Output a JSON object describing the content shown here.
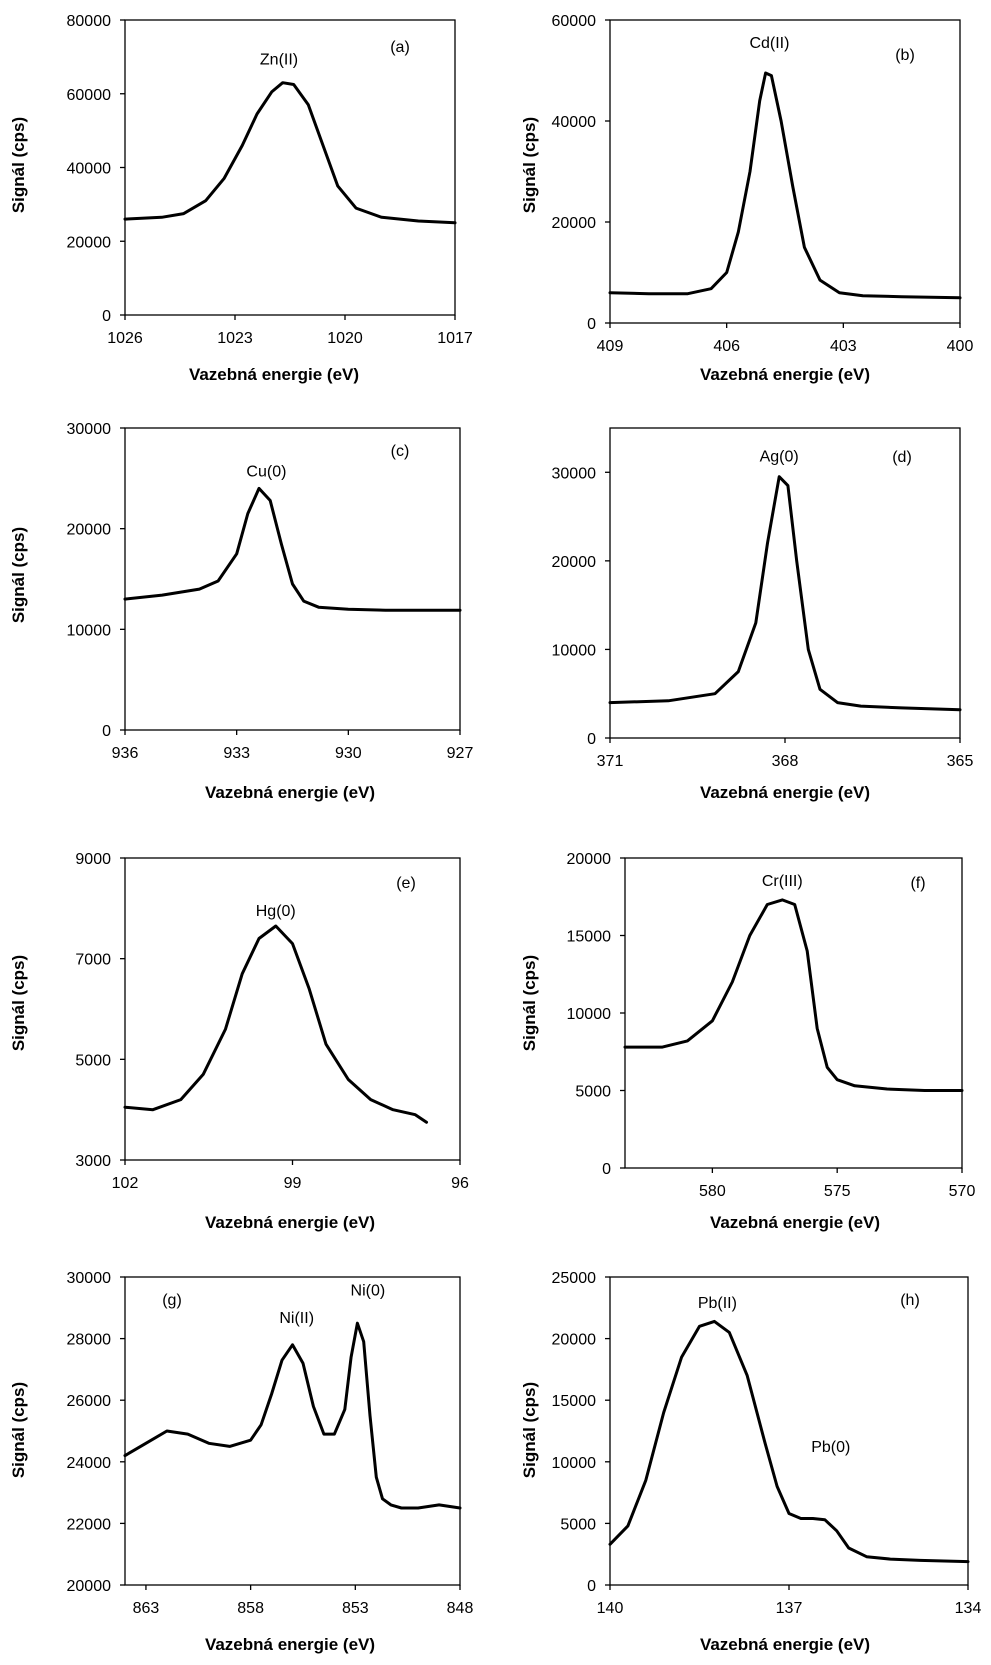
{
  "chart_data": [
    {
      "type": "line",
      "panel_label": "(a)",
      "xlabel": "Vazebná energie (eV)",
      "ylabel": "Signál (cps)",
      "xlim": [
        1026,
        1017
      ],
      "ylim": [
        0,
        80000
      ],
      "xticks": [
        1026,
        1023,
        1020,
        1017
      ],
      "yticks": [
        0,
        20000,
        40000,
        60000,
        80000
      ],
      "annotations": [
        {
          "text": "Zn(II)",
          "x": 1021.8,
          "y": 68000
        }
      ],
      "series": [
        {
          "x": [
            1026,
            1025,
            1024.4,
            1023.8,
            1023.3,
            1022.8,
            1022.4,
            1022.0,
            1021.7,
            1021.4,
            1021.0,
            1020.6,
            1020.2,
            1019.7,
            1019.0,
            1018.0,
            1017
          ],
          "y": [
            26000,
            26500,
            27500,
            31000,
            37000,
            46000,
            54500,
            60500,
            63000,
            62500,
            57000,
            46000,
            35000,
            29000,
            26500,
            25500,
            25000
          ]
        }
      ]
    },
    {
      "type": "line",
      "panel_label": "(b)",
      "xlabel": "Vazebná energie (eV)",
      "ylabel": "Signál (cps)",
      "xlim": [
        409,
        400
      ],
      "ylim": [
        0,
        60000
      ],
      "xticks": [
        409,
        406,
        403,
        400
      ],
      "yticks": [
        0,
        20000,
        40000,
        60000
      ],
      "annotations": [
        {
          "text": "Cd(II)",
          "x": 404.9,
          "y": 54500
        }
      ],
      "series": [
        {
          "x": [
            409,
            408,
            407.0,
            406.4,
            406.0,
            405.7,
            405.4,
            405.15,
            405.0,
            404.85,
            404.6,
            404.3,
            404.0,
            403.6,
            403.1,
            402.5,
            401.5,
            400
          ],
          "y": [
            6000,
            5800,
            5800,
            6800,
            10000,
            18000,
            30000,
            44000,
            49500,
            49000,
            40000,
            27000,
            15000,
            8500,
            6000,
            5400,
            5200,
            5000
          ]
        }
      ]
    },
    {
      "type": "line",
      "panel_label": "(c)",
      "xlabel": "Vazebná energie (eV)",
      "ylabel": "Signál (cps)",
      "xlim": [
        936,
        927
      ],
      "ylim": [
        0,
        30000
      ],
      "xticks": [
        936,
        933,
        930,
        927
      ],
      "yticks": [
        0,
        10000,
        20000,
        30000
      ],
      "annotations": [
        {
          "text": "Cu(0)",
          "x": 932.2,
          "y": 25200
        }
      ],
      "series": [
        {
          "x": [
            936,
            935,
            934,
            933.5,
            933.0,
            932.7,
            932.4,
            932.1,
            931.8,
            931.5,
            931.2,
            930.8,
            930.0,
            929.0,
            928.0,
            927
          ],
          "y": [
            13000,
            13400,
            14000,
            14800,
            17500,
            21500,
            24000,
            22800,
            18500,
            14500,
            12800,
            12200,
            12000,
            11900,
            11900,
            11900
          ]
        }
      ]
    },
    {
      "type": "line",
      "panel_label": "(d)",
      "xlabel": "Vazebná energie (eV)",
      "ylabel": "",
      "xlim": [
        371,
        365
      ],
      "ylim": [
        0,
        35000
      ],
      "xticks": [
        371,
        368,
        365
      ],
      "yticks": [
        0,
        10000,
        20000,
        30000
      ],
      "annotations": [
        {
          "text": "Ag(0)",
          "x": 368.1,
          "y": 31200
        }
      ],
      "series": [
        {
          "x": [
            371,
            370.0,
            369.2,
            368.8,
            368.5,
            368.3,
            368.1,
            367.95,
            367.8,
            367.6,
            367.4,
            367.1,
            366.7,
            366.0,
            365
          ],
          "y": [
            4000,
            4200,
            5000,
            7500,
            13000,
            22000,
            29500,
            28500,
            20000,
            10000,
            5500,
            4000,
            3600,
            3400,
            3200
          ]
        }
      ]
    },
    {
      "type": "line",
      "panel_label": "(e)",
      "xlabel": "Vazebná energie (eV)",
      "ylabel": "Signál (cps)",
      "xlim": [
        102,
        96
      ],
      "ylim": [
        3000,
        9000
      ],
      "xticks": [
        102,
        99,
        96
      ],
      "yticks": [
        3000,
        5000,
        7000,
        9000
      ],
      "annotations": [
        {
          "text": "Hg(0)",
          "x": 99.3,
          "y": 7850
        }
      ],
      "series": [
        {
          "x": [
            102,
            101.5,
            101.0,
            100.6,
            100.2,
            99.9,
            99.6,
            99.3,
            99.0,
            98.7,
            98.4,
            98.0,
            97.6,
            97.2,
            96.8,
            96.6
          ],
          "y": [
            4050,
            4000,
            4200,
            4700,
            5600,
            6700,
            7400,
            7650,
            7300,
            6400,
            5300,
            4600,
            4200,
            4000,
            3900,
            3750
          ]
        }
      ]
    },
    {
      "type": "line",
      "panel_label": "(f)",
      "xlabel": "Vazebná energie (eV)",
      "ylabel": "Signál (cps)",
      "xlim": [
        583.5,
        570
      ],
      "ylim": [
        0,
        20000
      ],
      "xticks": [
        580,
        575,
        570
      ],
      "yticks": [
        0,
        5000,
        10000,
        15000,
        20000
      ],
      "annotations": [
        {
          "text": "Cr(III)",
          "x": 577.2,
          "y": 18200
        }
      ],
      "series": [
        {
          "x": [
            583.5,
            582,
            581,
            580,
            579.2,
            578.5,
            577.8,
            577.2,
            576.7,
            576.2,
            575.8,
            575.4,
            575.0,
            574.3,
            573,
            571.5,
            570
          ],
          "y": [
            7800,
            7800,
            8200,
            9500,
            12000,
            15000,
            17000,
            17300,
            17000,
            14000,
            9000,
            6500,
            5700,
            5300,
            5100,
            5000,
            5000
          ]
        }
      ]
    },
    {
      "type": "line",
      "panel_label": "(g)",
      "xlabel": "Vazebná energie (eV)",
      "ylabel": "Signál (cps)",
      "xlim": [
        864,
        848
      ],
      "ylim": [
        20000,
        30000
      ],
      "xticks": [
        863,
        858,
        853,
        848
      ],
      "yticks": [
        20000,
        22000,
        24000,
        26000,
        28000,
        30000
      ],
      "annotations": [
        {
          "text": "Ni(II)",
          "x": 855.8,
          "y": 28500
        },
        {
          "text": "Ni(0)",
          "x": 852.4,
          "y": 29400
        }
      ],
      "series": [
        {
          "x": [
            864,
            863,
            862,
            861,
            860,
            859,
            858,
            857.5,
            857,
            856.5,
            856,
            855.5,
            855,
            854.5,
            854,
            853.5,
            853.2,
            852.9,
            852.6,
            852.3,
            852.0,
            851.7,
            851.3,
            850.8,
            850,
            849,
            848
          ],
          "y": [
            24200,
            24600,
            25000,
            24900,
            24600,
            24500,
            24700,
            25200,
            26200,
            27300,
            27800,
            27200,
            25800,
            24900,
            24900,
            25700,
            27400,
            28500,
            27900,
            25500,
            23500,
            22800,
            22600,
            22500,
            22500,
            22600,
            22500
          ]
        }
      ]
    },
    {
      "type": "line",
      "panel_label": "(h)",
      "xlabel": "Vazebná energie (eV)",
      "ylabel": "Signál (cps)",
      "xlim": [
        140,
        134
      ],
      "ylim": [
        0,
        25000
      ],
      "xticks": [
        140,
        137,
        134
      ],
      "yticks": [
        0,
        5000,
        10000,
        15000,
        20000,
        25000
      ],
      "annotations": [
        {
          "text": "Pb(II)",
          "x": 138.2,
          "y": 22500
        },
        {
          "text": "Pb(0)",
          "x": 136.3,
          "y": 10800
        }
      ],
      "series": [
        {
          "x": [
            140,
            139.7,
            139.4,
            139.1,
            138.8,
            138.5,
            138.25,
            138.0,
            137.7,
            137.4,
            137.2,
            137.0,
            136.8,
            136.6,
            136.4,
            136.2,
            136.0,
            135.7,
            135.3,
            134.8,
            134
          ],
          "y": [
            3300,
            4800,
            8500,
            14000,
            18500,
            21000,
            21400,
            20500,
            17000,
            11500,
            8000,
            5800,
            5400,
            5400,
            5300,
            4400,
            3000,
            2300,
            2100,
            2000,
            1900
          ]
        }
      ]
    }
  ]
}
